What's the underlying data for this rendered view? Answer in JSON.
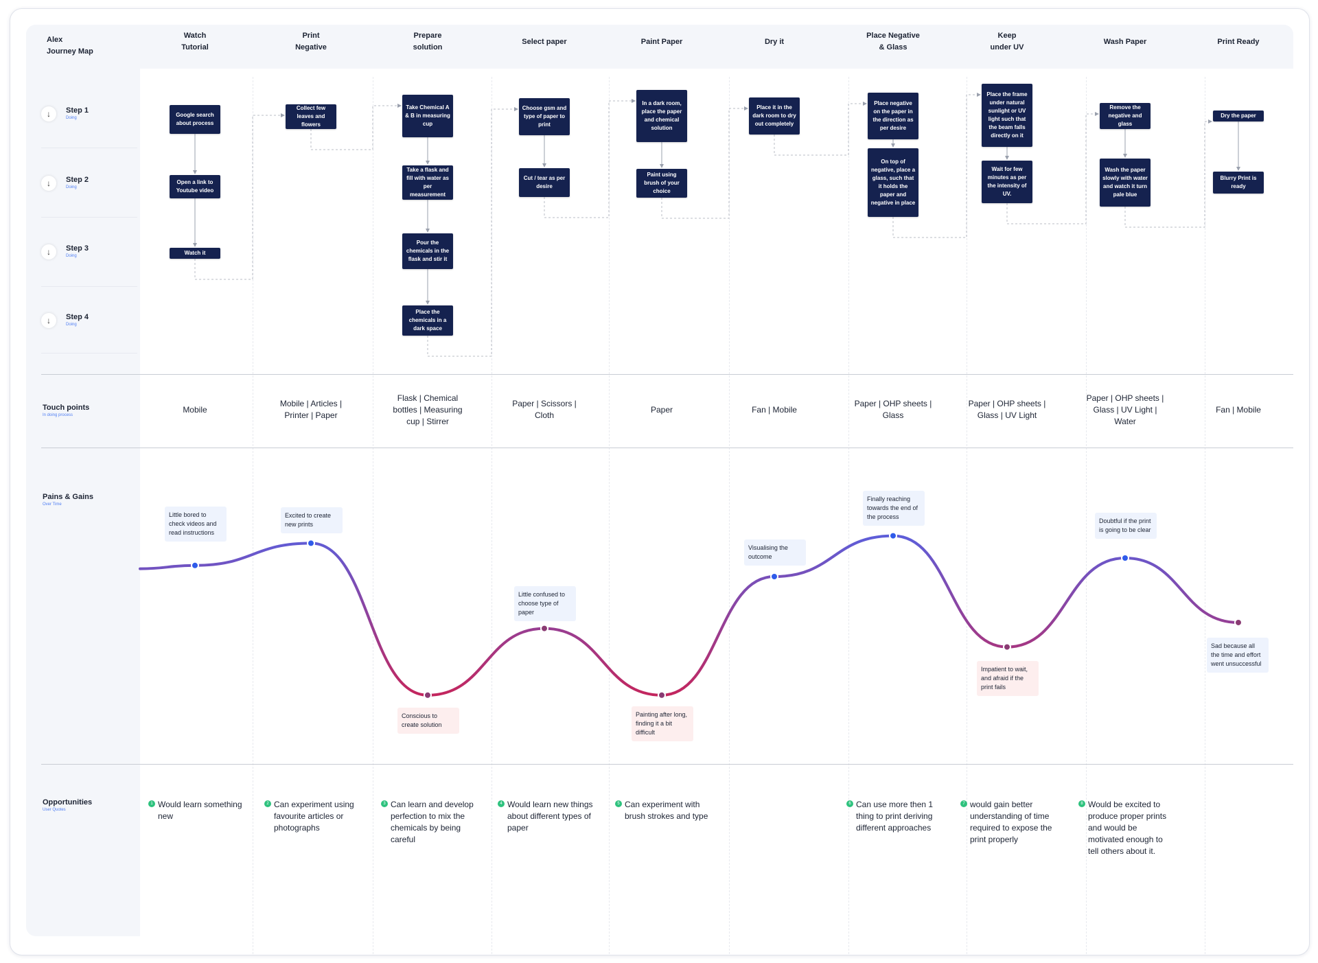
{
  "map": {
    "title": "Alex\nJourney Map"
  },
  "columns": [
    "Watch\nTutorial",
    "Print\nNegative",
    "Prepare\nsolution",
    "Select paper",
    "Paint Paper",
    "Dry it",
    "Place Negative\n& Glass",
    "Keep\nunder UV",
    "Wash Paper",
    "Print Ready"
  ],
  "rows": [
    {
      "label": "Step 1",
      "sub": "Doing"
    },
    {
      "label": "Step 2",
      "sub": "Doing"
    },
    {
      "label": "Step 3",
      "sub": "Doing"
    },
    {
      "label": "Step 4",
      "sub": "Doing"
    }
  ],
  "steps": [
    [
      "Google search about process",
      "Open a link to Youtube video",
      "Watch it"
    ],
    [
      "Collect few leaves and flowers"
    ],
    [
      "Take Chemical A & B in measuring cup",
      "Take a flask and fill with water as per measurement",
      "Pour the chemicals in the flask and stir it",
      "Place the chemicals in a dark space"
    ],
    [
      "Choose gsm and type of paper to print",
      "Cut / tear as per desire"
    ],
    [
      "In a dark room, place the paper and chemical solution",
      "Paint using brush of your choice"
    ],
    [
      "Place it in the dark room to dry out completely"
    ],
    [
      "Place negative on the paper in the direction as per desire",
      "On top of negative, place a glass, such that it holds the paper and negative in place"
    ],
    [
      "Place the frame under natural sunlight or UV light such that the beam falls directly on it",
      "Wait for few minutes as per the intensity of UV."
    ],
    [
      "Remove the negative and glass",
      "Wash the paper slowly with water and watch it turn pale blue"
    ],
    [
      "Dry the paper",
      "Blurry Print is ready"
    ]
  ],
  "touch_points": {
    "label": "Touch points",
    "sub": "In doing process",
    "items": [
      "Mobile",
      "Mobile | Articles |\nPrinter | Paper",
      "Flask | Chemical\nbottles | Measuring\ncup | Stirrer",
      "Paper | Scissors |\nCloth",
      "Paper",
      "Fan | Mobile",
      "Paper | OHP sheets |\nGlass",
      "Paper | OHP sheets |\nGlass | UV Light",
      "Paper | OHP sheets |\nGlass | UV Light |\nWater",
      "Fan | Mobile"
    ]
  },
  "pains_gains": {
    "label": "Pains & Gains",
    "sub": "Over Time"
  },
  "chart_data": {
    "type": "line",
    "categories": [
      "Watch Tutorial",
      "Print Negative",
      "Prepare solution",
      "Select paper",
      "Paint Paper",
      "Dry it",
      "Place Negative & Glass",
      "Keep under UV",
      "Wash Paper",
      "Print Ready"
    ],
    "values": [
      0.15,
      0.45,
      -1.6,
      -0.7,
      -1.6,
      0.0,
      0.55,
      -0.95,
      0.25,
      -0.62
    ],
    "labels": [
      "Little bored to check videos and read instructions",
      "Excited to create new prints",
      "Conscious to create solution",
      "Little confused to choose type of paper",
      "Painting after long, finding it a bit difficult",
      "Visualising the outcome",
      "Finally reaching towards the end of the process",
      "Impatient to wait, and afraid if the print fails",
      "Doubtful if the print is going to be clear",
      "Sad because all the time and effort went unsuccessful"
    ],
    "sentiment": [
      "gain",
      "gain",
      "pain",
      "gain",
      "pain",
      "gain",
      "gain",
      "pain",
      "gain",
      "gain"
    ],
    "colors": {
      "high": "#5b5fdc",
      "low": "#c3265e",
      "point": "#2f5bea"
    }
  },
  "opportunities": {
    "label": "Opportunities",
    "sub": "User Quotes",
    "items": [
      {
        "num": "1",
        "col": 0,
        "text": "Would learn something new"
      },
      {
        "num": "2",
        "col": 1,
        "text": "Can experiment using favourite articles or photographs"
      },
      {
        "num": "3",
        "col": 2,
        "text": "Can learn and develop perfection to mix the chemicals by being careful"
      },
      {
        "num": "4",
        "col": 3,
        "text": "Would learn new things about different types of paper"
      },
      {
        "num": "5",
        "col": 4,
        "text": "Can experiment with brush strokes and type"
      },
      {
        "num": "6",
        "col": 6,
        "text": "Can use more then 1 thing to print deriving different approaches"
      },
      {
        "num": "7",
        "col": 7,
        "text": "would gain better understanding of time required to expose the print properly"
      },
      {
        "num": "8",
        "col": 8,
        "text": "Would be excited to produce proper prints and would be motivated enough to tell others about it."
      }
    ]
  }
}
